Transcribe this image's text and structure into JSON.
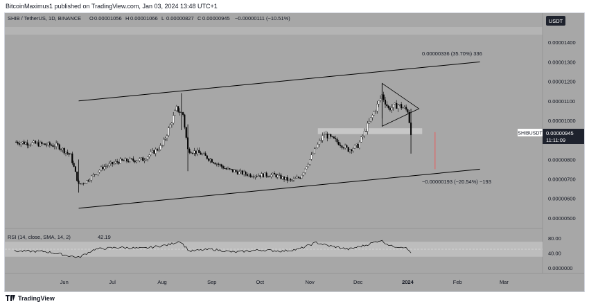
{
  "header": {
    "publisher_line": "BitcoinMaximus1 published on TradingView.com, Jan 03, 2024 13:48 UTC+1",
    "symbol_line": "SHIB / TetherUS, 1D, BINANCE",
    "ohlc": [
      {
        "key": "O",
        "value": "0.00001056"
      },
      {
        "key": "H",
        "value": "0.00001066"
      },
      {
        "key": "L",
        "value": "0.00000827"
      },
      {
        "key": "C",
        "value": "0.00000945"
      }
    ],
    "change": "−0.00000111 (−10.51%)",
    "currency_badge": "USDT"
  },
  "price_tag": {
    "symbol": "SHIBUSDT",
    "price": "0.00000945",
    "countdown": "11:11:09"
  },
  "annotations": {
    "upper_measure": "0.00000336 (35.70%) 336",
    "lower_measure": "−0.00000193 (−20.54%) −193"
  },
  "rsi": {
    "label": "RSI (14, close, SMA, 14, 2)",
    "value": "42.19"
  },
  "footer": {
    "brand": "TradingView"
  },
  "colors": {
    "background": "#a7a7a7",
    "line": "#000000",
    "zone": "#c7c7c7",
    "target_line": "#e06666",
    "rsi_band": "#bdbdbd"
  },
  "chart_data": {
    "type": "candlestick",
    "x_ticks": [
      "Jun",
      "Jul",
      "Aug",
      "Sep",
      "Oct",
      "Nov",
      "Dec",
      "2024",
      "Feb",
      "Mar"
    ],
    "y_ticks": [
      "0.00001400",
      "0.00001300",
      "0.00001200",
      "0.00001100",
      "0.00001000",
      "0.00000800",
      "0.00000700",
      "0.00000600",
      "0.00000500"
    ],
    "ylim": [
      4.5e-06,
      1.5e-05
    ],
    "close_series": [
      {
        "date": "2023-05-01",
        "price": 8.9e-06
      },
      {
        "date": "2023-05-15",
        "price": 8.8e-06
      },
      {
        "date": "2023-05-28",
        "price": 8.7e-06
      },
      {
        "date": "2023-06-05",
        "price": 8.2e-06
      },
      {
        "date": "2023-06-10",
        "price": 6.7e-06
      },
      {
        "date": "2023-06-15",
        "price": 6.9e-06
      },
      {
        "date": "2023-06-25",
        "price": 7.6e-06
      },
      {
        "date": "2023-07-05",
        "price": 7.9e-06
      },
      {
        "date": "2023-07-20",
        "price": 8e-06
      },
      {
        "date": "2023-08-01",
        "price": 8.7e-06
      },
      {
        "date": "2023-08-10",
        "price": 1.06e-05
      },
      {
        "date": "2023-08-14",
        "price": 1.03e-05
      },
      {
        "date": "2023-08-17",
        "price": 8.5e-06
      },
      {
        "date": "2023-08-25",
        "price": 8.3e-06
      },
      {
        "date": "2023-09-10",
        "price": 7.5e-06
      },
      {
        "date": "2023-09-25",
        "price": 7.2e-06
      },
      {
        "date": "2023-10-10",
        "price": 7.2e-06
      },
      {
        "date": "2023-10-20",
        "price": 6.9e-06
      },
      {
        "date": "2023-10-26",
        "price": 7.1e-06
      },
      {
        "date": "2023-11-05",
        "price": 8.6e-06
      },
      {
        "date": "2023-11-10",
        "price": 9.3e-06
      },
      {
        "date": "2023-11-20",
        "price": 8.8e-06
      },
      {
        "date": "2023-11-25",
        "price": 8.5e-06
      },
      {
        "date": "2023-12-01",
        "price": 8.7e-06
      },
      {
        "date": "2023-12-08",
        "price": 9.9e-06
      },
      {
        "date": "2023-12-16",
        "price": 1.13e-05
      },
      {
        "date": "2023-12-20",
        "price": 1.06e-05
      },
      {
        "date": "2023-12-26",
        "price": 1.08e-05
      },
      {
        "date": "2024-01-01",
        "price": 1.05e-05
      },
      {
        "date": "2024-01-03",
        "price": 9.4e-06
      }
    ],
    "channel": {
      "upper": [
        [
          "2023-06-10",
          1.1e-05
        ],
        [
          "2024-02-15",
          1.3e-05
        ]
      ],
      "lower": [
        [
          "2023-06-10",
          5.5e-06
        ],
        [
          "2024-02-15",
          7.5e-06
        ]
      ]
    },
    "triangle": [
      [
        "2023-12-16",
        1.19e-05
      ],
      [
        "2023-12-16",
        9.7e-06
      ],
      [
        "2024-01-08",
        1.06e-05
      ]
    ],
    "resistance_zone": [
      9.3e-06,
      9.6e-06
    ],
    "rsi_panel": {
      "y_ticks": [
        "80.00",
        "40.00",
        "0.0000000"
      ],
      "band": [
        30,
        70
      ],
      "ylim": [
        0,
        100
      ],
      "values": [
        {
          "date": "2023-05-01",
          "v": 45
        },
        {
          "date": "2023-05-20",
          "v": 44
        },
        {
          "date": "2023-06-10",
          "v": 28
        },
        {
          "date": "2023-06-20",
          "v": 50
        },
        {
          "date": "2023-07-05",
          "v": 55
        },
        {
          "date": "2023-07-20",
          "v": 52
        },
        {
          "date": "2023-08-05",
          "v": 62
        },
        {
          "date": "2023-08-12",
          "v": 72
        },
        {
          "date": "2023-08-18",
          "v": 45
        },
        {
          "date": "2023-09-01",
          "v": 50
        },
        {
          "date": "2023-09-15",
          "v": 42
        },
        {
          "date": "2023-10-01",
          "v": 48
        },
        {
          "date": "2023-10-15",
          "v": 45
        },
        {
          "date": "2023-10-25",
          "v": 50
        },
        {
          "date": "2023-11-05",
          "v": 68
        },
        {
          "date": "2023-11-12",
          "v": 60
        },
        {
          "date": "2023-11-25",
          "v": 50
        },
        {
          "date": "2023-12-05",
          "v": 60
        },
        {
          "date": "2023-12-15",
          "v": 74
        },
        {
          "date": "2023-12-22",
          "v": 58
        },
        {
          "date": "2023-12-30",
          "v": 56
        },
        {
          "date": "2024-01-03",
          "v": 42
        }
      ]
    }
  }
}
